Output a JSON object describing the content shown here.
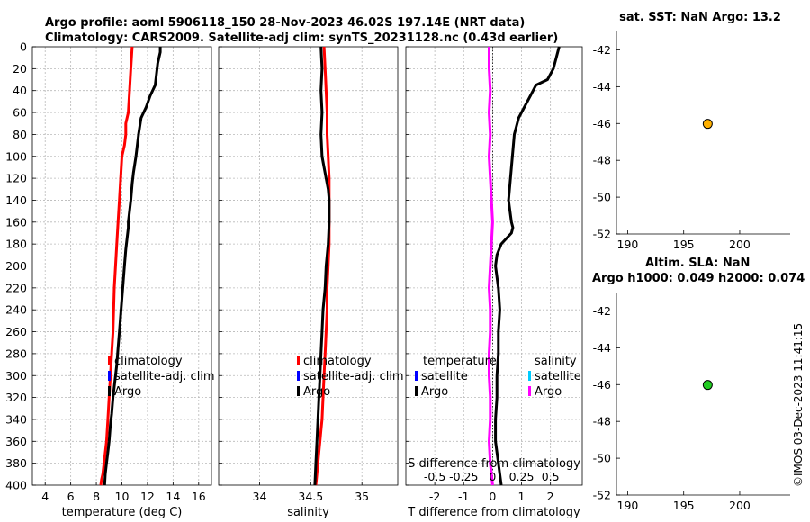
{
  "header": {
    "title_line1": "Argo profile: aoml 5906118_150 28-Nov-2023 46.02S 197.14E (NRT data)",
    "title_line2": "Climatology: CARS2009. Satellite-adj clim: synTS_20231128.nc (0.43d earlier)"
  },
  "copyright": "©IMOS 03-Dec-2023 11:41:15",
  "colors": {
    "climatology": "#ff0000",
    "satellite_adj_clim": "#0000ff",
    "argo": "#000000",
    "salinity_argo_diff": "#ff00ff",
    "salinity_satellite_diff": "#00ccff",
    "sst_marker": "#ffb000",
    "sla_marker": "#22cc22"
  },
  "chart_data": [
    {
      "id": "temperature",
      "type": "line",
      "xlabel": "temperature (deg C)",
      "ylabel": "",
      "xlim": [
        3,
        17
      ],
      "ylim": [
        400,
        0
      ],
      "xticks": [
        4,
        6,
        8,
        10,
        12,
        14,
        16
      ],
      "yticks": [
        0,
        20,
        40,
        60,
        80,
        100,
        120,
        140,
        160,
        180,
        200,
        220,
        240,
        260,
        280,
        300,
        320,
        340,
        360,
        380,
        400
      ],
      "grid": true,
      "legend": [
        "climatology",
        "satellite-adj. clim",
        "Argo"
      ],
      "series": [
        {
          "name": "climatology",
          "color": "#ff0000",
          "x": [
            10.8,
            10.7,
            10.6,
            10.5,
            10.3,
            10.3,
            10.2,
            10.0,
            9.9,
            9.8,
            9.7,
            9.6,
            9.55,
            9.5,
            9.4,
            9.35,
            9.3,
            9.2,
            9.1,
            9.0,
            8.9,
            8.8,
            8.7,
            8.6,
            8.5,
            8.4,
            8.35
          ],
          "y": [
            0,
            20,
            40,
            60,
            70,
            80,
            90,
            100,
            120,
            140,
            160,
            180,
            190,
            200,
            220,
            240,
            260,
            280,
            300,
            320,
            340,
            360,
            370,
            380,
            390,
            395,
            400
          ]
        },
        {
          "name": "Argo",
          "color": "#000000",
          "x": [
            13.0,
            13.0,
            12.9,
            12.8,
            12.7,
            12.6,
            12.2,
            11.9,
            11.5,
            11.3,
            11.1,
            10.9,
            10.8,
            10.7,
            10.6,
            10.5,
            10.5,
            10.4,
            10.3,
            10.2,
            10.1,
            10.0,
            9.9,
            9.8,
            9.7,
            9.6,
            9.5,
            9.4,
            9.3,
            9.2,
            9.1,
            9.0,
            8.9,
            8.8,
            8.7,
            8.65
          ],
          "y": [
            0,
            5,
            10,
            15,
            25,
            35,
            45,
            55,
            65,
            80,
            100,
            115,
            125,
            140,
            150,
            160,
            165,
            175,
            185,
            200,
            215,
            230,
            245,
            260,
            275,
            290,
            300,
            310,
            320,
            335,
            345,
            360,
            370,
            380,
            390,
            400
          ]
        }
      ]
    },
    {
      "id": "salinity",
      "type": "line",
      "xlabel": "salinity",
      "ylabel": "",
      "xlim": [
        33.6,
        35.35
      ],
      "ylim": [
        400,
        0
      ],
      "xticks": [
        34,
        34.5,
        35
      ],
      "grid": true,
      "legend": [
        "climatology",
        "satellite-adj. clim",
        "Argo"
      ],
      "series": [
        {
          "name": "climatology",
          "color": "#ff0000",
          "x": [
            34.63,
            34.64,
            34.65,
            34.66,
            34.66,
            34.67,
            34.68,
            34.68,
            34.68,
            34.68,
            34.67,
            34.66,
            34.66,
            34.65,
            34.64,
            34.63,
            34.62,
            34.61,
            34.6,
            34.59,
            34.58,
            34.57,
            34.56,
            34.55
          ],
          "y": [
            0,
            20,
            40,
            60,
            80,
            100,
            120,
            140,
            160,
            180,
            200,
            220,
            240,
            260,
            280,
            300,
            320,
            340,
            350,
            360,
            370,
            380,
            390,
            400
          ]
        },
        {
          "name": "Argo",
          "color": "#000000",
          "x": [
            34.6,
            34.61,
            34.6,
            34.61,
            34.6,
            34.61,
            34.63,
            34.65,
            34.67,
            34.68,
            34.68,
            34.67,
            34.65,
            34.64,
            34.62,
            34.61,
            34.6,
            34.59,
            34.58,
            34.57,
            34.56,
            34.55,
            34.54
          ],
          "y": [
            0,
            20,
            40,
            60,
            80,
            100,
            110,
            120,
            130,
            140,
            160,
            180,
            200,
            220,
            240,
            260,
            280,
            300,
            320,
            340,
            360,
            380,
            400
          ]
        }
      ]
    },
    {
      "id": "difference",
      "type": "line",
      "xlabel": "T difference from climatology",
      "secondary_xlabel": "S difference from climatology",
      "ylabel": "",
      "xlim": [
        -3,
        3.1
      ],
      "ylim": [
        400,
        0
      ],
      "xticks": [
        -2,
        -1,
        0,
        1,
        2
      ],
      "xticklabels_S": [
        "-0.5",
        "-0.25",
        "0",
        "0.25",
        "0.5"
      ],
      "xticks_S": [
        -0.5,
        -0.25,
        0,
        0.25,
        0.5
      ],
      "S_scale_factor": 4,
      "grid": true,
      "legend": {
        "temperature_title": "temperature",
        "salinity_title": "salinity",
        "entries": [
          "satellite",
          "Argo"
        ]
      },
      "series": [
        {
          "name": "T Argo",
          "color": "#000000",
          "x": [
            2.3,
            2.2,
            2.1,
            1.9,
            1.5,
            1.4,
            1.3,
            1.1,
            0.9,
            0.75,
            0.7,
            0.65,
            0.6,
            0.55,
            0.6,
            0.65,
            0.7,
            0.65,
            0.3,
            0.15,
            0.1,
            0.2,
            0.25,
            0.2,
            0.2,
            0.15,
            0.15,
            0.1,
            0.1,
            0.15,
            0.2,
            0.25,
            0.3
          ],
          "y": [
            0,
            10,
            20,
            30,
            35,
            40,
            45,
            55,
            65,
            80,
            95,
            110,
            125,
            140,
            150,
            160,
            165,
            170,
            180,
            190,
            200,
            220,
            240,
            260,
            280,
            300,
            320,
            340,
            360,
            370,
            380,
            390,
            400
          ]
        },
        {
          "name": "S Argo",
          "color": "#ff00ff",
          "x": [
            -0.03,
            -0.03,
            -0.02,
            -0.03,
            -0.02,
            -0.03,
            -0.02,
            -0.01,
            0.0,
            -0.01,
            -0.02,
            -0.03,
            -0.02,
            -0.02,
            -0.03,
            -0.03,
            -0.02,
            -0.02,
            -0.03,
            -0.02,
            -0.01,
            0.0
          ],
          "y": [
            0,
            20,
            40,
            60,
            80,
            100,
            120,
            140,
            160,
            180,
            200,
            220,
            240,
            260,
            280,
            300,
            320,
            340,
            360,
            380,
            390,
            400
          ]
        }
      ]
    },
    {
      "id": "sst_map",
      "type": "scatter",
      "title": "sat. SST: NaN Argo: 13.2",
      "xlim": [
        189,
        204.5
      ],
      "ylim": [
        -52,
        -41
      ],
      "xticks": [
        190,
        195,
        200
      ],
      "yticks": [
        -52,
        -50,
        -48,
        -46,
        -44,
        -42
      ],
      "points": [
        {
          "x": 197.14,
          "y": -46.02
        }
      ]
    },
    {
      "id": "sla_map",
      "type": "scatter",
      "title_line1": "Altim. SLA: NaN",
      "title_line2": "Argo h1000: 0.049 h2000: 0.074",
      "xlim": [
        189,
        204.5
      ],
      "ylim": [
        -52,
        -41
      ],
      "xticks": [
        190,
        195,
        200
      ],
      "yticks": [
        -52,
        -50,
        -48,
        -46,
        -44,
        -42
      ],
      "points": [
        {
          "x": 197.14,
          "y": -46.02
        }
      ]
    }
  ]
}
